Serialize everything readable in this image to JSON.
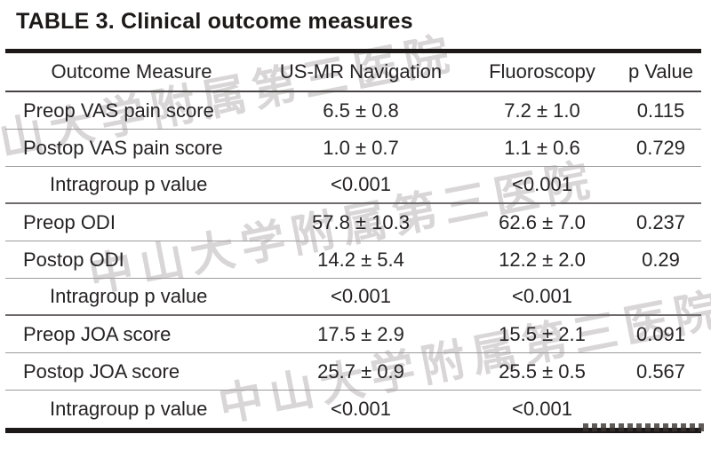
{
  "page": {
    "title": "TABLE 3. Clinical outcome measures"
  },
  "table": {
    "columns": {
      "outcome": "Outcome Measure",
      "usmr": "US-MR Navigation",
      "fluoro": "Fluoroscopy",
      "p": "p Value"
    },
    "rows": [
      {
        "label": "Preop VAS pain score",
        "indent": false,
        "usmr": "6.5 ± 0.8",
        "fluoro": "7.2 ± 1.0",
        "p": "0.115",
        "group_end": false
      },
      {
        "label": "Postop VAS pain score",
        "indent": false,
        "usmr": "1.0 ± 0.7",
        "fluoro": "1.1 ± 0.6",
        "p": "0.729",
        "group_end": false
      },
      {
        "label": "Intragroup p value",
        "indent": true,
        "usmr": "<0.001",
        "fluoro": "<0.001",
        "p": "",
        "group_end": true
      },
      {
        "label": "Preop ODI",
        "indent": false,
        "usmr": "57.8 ± 10.3",
        "fluoro": "62.6 ± 7.0",
        "p": "0.237",
        "group_end": false
      },
      {
        "label": "Postop ODI",
        "indent": false,
        "usmr": "14.2 ± 5.4",
        "fluoro": "12.2 ± 2.0",
        "p": "0.29",
        "group_end": false
      },
      {
        "label": "Intragroup p value",
        "indent": true,
        "usmr": "<0.001",
        "fluoro": "<0.001",
        "p": "",
        "group_end": true
      },
      {
        "label": "Preop JOA score",
        "indent": false,
        "usmr": "17.5 ± 2.9",
        "fluoro": "15.5 ± 2.1",
        "p": "0.091",
        "group_end": false
      },
      {
        "label": "Postop JOA score",
        "indent": false,
        "usmr": "25.7 ± 0.9",
        "fluoro": "25.5 ± 0.5",
        "p": "0.567",
        "group_end": false
      },
      {
        "label": "Intragroup p value",
        "indent": true,
        "usmr": "<0.001",
        "fluoro": "<0.001",
        "p": "",
        "group_end": false
      }
    ]
  },
  "watermark": {
    "text": "中山大学附属第三医院"
  },
  "colors": {
    "background": "#ffffff",
    "text": "#262324",
    "rule_heavy": "#1c1918",
    "header_line": "#474443",
    "row_line": "#9d9a9a",
    "group_line": "#6f6b6b",
    "watermark": "#d8d6d6"
  }
}
